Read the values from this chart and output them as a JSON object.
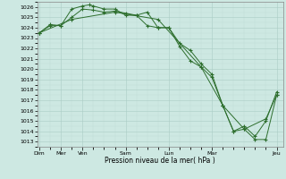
{
  "xlabel": "Pression niveau de la mer( hPa )",
  "ylim": [
    1012.5,
    1026.5
  ],
  "xlim": [
    -0.1,
    11.3
  ],
  "yticks": [
    1013,
    1014,
    1015,
    1016,
    1017,
    1018,
    1019,
    1020,
    1021,
    1022,
    1023,
    1024,
    1025,
    1026
  ],
  "tick_positions": [
    0,
    1,
    2,
    4,
    6,
    8,
    11
  ],
  "tick_labels": [
    "Dim",
    "Mer",
    "Ven",
    "Sam",
    "Lun",
    "Mar",
    "Jeu"
  ],
  "background_color": "#cde8e2",
  "grid_color_major": "#aaccc5",
  "grid_color_minor": "#c0dcd7",
  "line_color": "#2d6e2d",
  "series1_x": [
    0,
    0.5,
    1.0,
    1.5,
    2.0,
    2.3,
    2.5,
    3.0,
    3.5,
    4.0,
    4.5,
    5.0,
    5.5,
    6.0,
    6.5,
    7.0,
    7.5,
    8.0,
    8.5,
    9.0,
    9.5,
    10.0,
    10.5,
    11.0
  ],
  "series1_y": [
    1023.5,
    1024.3,
    1024.2,
    1025.8,
    1026.1,
    1026.2,
    1026.1,
    1025.8,
    1025.8,
    1025.2,
    1025.2,
    1025.5,
    1024.0,
    1024.0,
    1022.5,
    1021.8,
    1020.5,
    1019.5,
    1016.5,
    1014.0,
    1014.5,
    1013.5,
    1015.0,
    1017.8
  ],
  "series2_x": [
    0,
    0.5,
    1.0,
    1.5,
    2.0,
    2.5,
    3.0,
    3.5,
    4.0,
    4.5,
    5.0,
    5.5,
    6.0,
    6.5,
    7.0,
    7.5,
    8.0,
    8.5,
    9.0,
    9.5,
    10.0,
    10.5,
    11.0
  ],
  "series2_y": [
    1023.5,
    1024.2,
    1024.2,
    1025.0,
    1025.8,
    1025.7,
    1025.5,
    1025.6,
    1025.4,
    1025.2,
    1024.2,
    1024.0,
    1024.0,
    1022.2,
    1020.8,
    1020.2,
    1019.2,
    1016.5,
    1014.0,
    1014.2,
    1013.2,
    1013.2,
    1017.5
  ],
  "series3_x": [
    0,
    1.5,
    3.5,
    5.5,
    7.5,
    8.5,
    9.5,
    10.5,
    11.0
  ],
  "series3_y": [
    1023.5,
    1024.8,
    1025.5,
    1024.8,
    1020.2,
    1016.5,
    1014.2,
    1015.2,
    1017.5
  ]
}
